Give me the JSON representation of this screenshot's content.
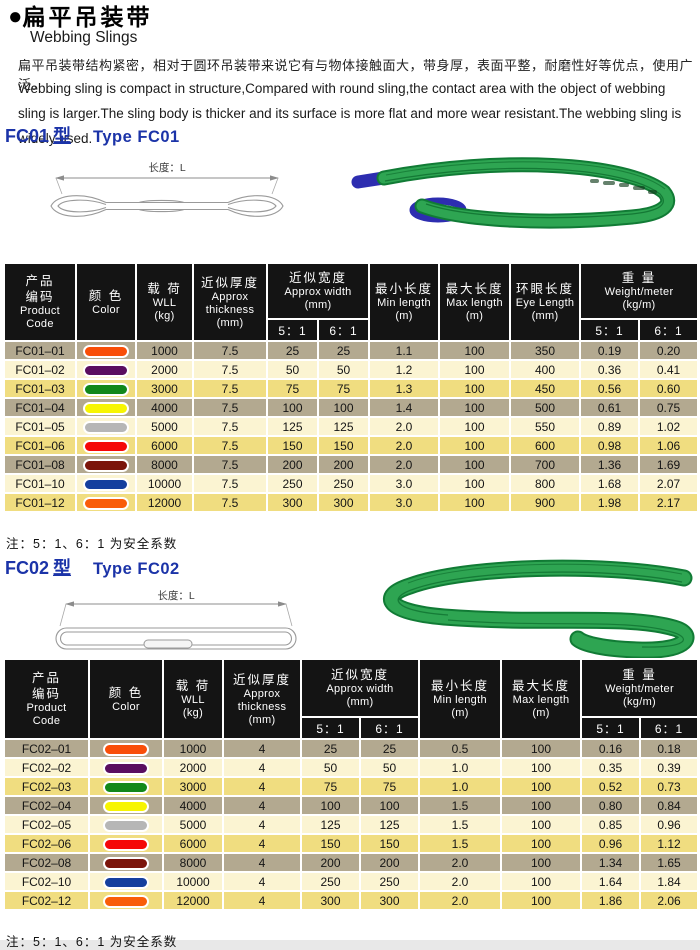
{
  "header": {
    "bullet": "●",
    "title_zh": "扁平吊装带",
    "title_en": "Webbing Slings",
    "desc_zh": "扁平吊装带结构紧密，相对于圆环吊装带来说它有与物体接触面大，带身厚，表面平整，耐磨性好等优点，使用广泛。",
    "desc_en": "Webbing sling is compact in structure,Compared with round sling,the contact area with the object of webbing sling is larger.The sling body is thicker and its surface is more flat and more wear resistant.The webbing sling is widely used."
  },
  "sections": [
    {
      "heading_code": "FC01",
      "heading_xing": "型",
      "heading_en": "Type FC01",
      "drawing_label": "长度：L",
      "note": "注：5：1、6：1 为安全系数",
      "table": {
        "columns": [
          {
            "lines": [
              "产品",
              "编码",
              "Product",
              "Code"
            ],
            "sub": null
          },
          {
            "lines": [
              "颜 色",
              "Color"
            ],
            "sub": null
          },
          {
            "lines": [
              "载 荷",
              "WLL",
              "(kg)"
            ],
            "sub": null
          },
          {
            "lines": [
              "近似厚度",
              "Approx",
              "thickness",
              "(mm)"
            ],
            "sub": null
          },
          {
            "lines": [
              "近似宽度",
              "Approx width",
              "(mm)"
            ],
            "sub": [
              "5：1",
              "6：1"
            ]
          },
          {
            "lines": [
              "最小长度",
              "Min length",
              "(m)"
            ],
            "sub": null
          },
          {
            "lines": [
              "最大长度",
              "Max length",
              "(m)"
            ],
            "sub": null
          },
          {
            "lines": [
              "环眼长度",
              "Eye Length",
              "(mm)"
            ],
            "sub": null
          },
          {
            "lines": [
              "重 量",
              "Weight/meter",
              "(kg/m)"
            ],
            "sub": [
              "5：1",
              "6：1"
            ]
          }
        ],
        "rows": [
          {
            "code": "FC01–01",
            "color_name": "orange",
            "color_hex": "#f94e08",
            "values": [
              "1000",
              "7.5",
              "25",
              "25",
              "1.1",
              "100",
              "350",
              "0.19",
              "0.20"
            ]
          },
          {
            "code": "FC01–02",
            "color_name": "purple",
            "color_hex": "#5a0e60",
            "values": [
              "2000",
              "7.5",
              "50",
              "50",
              "1.2",
              "100",
              "400",
              "0.36",
              "0.41"
            ]
          },
          {
            "code": "FC01–03",
            "color_name": "green",
            "color_hex": "#12881a",
            "values": [
              "3000",
              "7.5",
              "75",
              "75",
              "1.3",
              "100",
              "450",
              "0.56",
              "0.60"
            ]
          },
          {
            "code": "FC01–04",
            "color_name": "yellow",
            "color_hex": "#f7f501",
            "values": [
              "4000",
              "7.5",
              "100",
              "100",
              "1.4",
              "100",
              "500",
              "0.61",
              "0.75"
            ]
          },
          {
            "code": "FC01–05",
            "color_name": "gray",
            "color_hex": "#b6b6b6",
            "values": [
              "5000",
              "7.5",
              "125",
              "125",
              "2.0",
              "100",
              "550",
              "0.89",
              "1.02"
            ]
          },
          {
            "code": "FC01–06",
            "color_name": "red",
            "color_hex": "#f50808",
            "values": [
              "6000",
              "7.5",
              "150",
              "150",
              "2.0",
              "100",
              "600",
              "0.98",
              "1.06"
            ]
          },
          {
            "code": "FC01–08",
            "color_name": "dark-red",
            "color_hex": "#7b150b",
            "values": [
              "8000",
              "7.5",
              "200",
              "200",
              "2.0",
              "100",
              "700",
              "1.36",
              "1.69"
            ]
          },
          {
            "code": "FC01–10",
            "color_name": "blue",
            "color_hex": "#153f9e",
            "values": [
              "10000",
              "7.5",
              "250",
              "250",
              "3.0",
              "100",
              "800",
              "1.68",
              "2.07"
            ]
          },
          {
            "code": "FC01–12",
            "color_name": "orange",
            "color_hex": "#f95d0a",
            "values": [
              "12000",
              "7.5",
              "300",
              "300",
              "3.0",
              "100",
              "900",
              "1.98",
              "2.17"
            ]
          }
        ]
      }
    },
    {
      "heading_code": "FC02",
      "heading_xing": "型",
      "heading_en": "Type FC02",
      "drawing_label": "长度：L",
      "note": "注：5：1、6：1 为安全系数",
      "table": {
        "columns": [
          {
            "lines": [
              "产品",
              "编码",
              "Product",
              "Code"
            ],
            "sub": null
          },
          {
            "lines": [
              "颜 色",
              "Color"
            ],
            "sub": null
          },
          {
            "lines": [
              "载 荷",
              "WLL",
              "(kg)"
            ],
            "sub": null
          },
          {
            "lines": [
              "近似厚度",
              "Approx",
              "thickness",
              "(mm)"
            ],
            "sub": null
          },
          {
            "lines": [
              "近似宽度",
              "Approx width",
              "(mm)"
            ],
            "sub": [
              "5：1",
              "6：1"
            ]
          },
          {
            "lines": [
              "最小长度",
              "Min length",
              "(m)"
            ],
            "sub": null
          },
          {
            "lines": [
              "最大长度",
              "Max length",
              "(m)"
            ],
            "sub": null
          },
          {
            "lines": [
              "重 量",
              "Weight/meter",
              "(kg/m)"
            ],
            "sub": [
              "5：1",
              "6：1"
            ]
          }
        ],
        "rows": [
          {
            "code": "FC02–01",
            "color_name": "orange",
            "color_hex": "#f94e08",
            "values": [
              "1000",
              "4",
              "25",
              "25",
              "0.5",
              "100",
              "0.16",
              "0.18"
            ]
          },
          {
            "code": "FC02–02",
            "color_name": "purple",
            "color_hex": "#5a0e60",
            "values": [
              "2000",
              "4",
              "50",
              "50",
              "1.0",
              "100",
              "0.35",
              "0.39"
            ]
          },
          {
            "code": "FC02–03",
            "color_name": "green",
            "color_hex": "#12881a",
            "values": [
              "3000",
              "4",
              "75",
              "75",
              "1.0",
              "100",
              "0.52",
              "0.73"
            ]
          },
          {
            "code": "FC02–04",
            "color_name": "yellow",
            "color_hex": "#f7f501",
            "values": [
              "4000",
              "4",
              "100",
              "100",
              "1.5",
              "100",
              "0.80",
              "0.84"
            ]
          },
          {
            "code": "FC02–05",
            "color_name": "gray",
            "color_hex": "#b6b6b6",
            "values": [
              "5000",
              "4",
              "125",
              "125",
              "1.5",
              "100",
              "0.85",
              "0.96"
            ]
          },
          {
            "code": "FC02–06",
            "color_name": "red",
            "color_hex": "#f50808",
            "values": [
              "6000",
              "4",
              "150",
              "150",
              "1.5",
              "100",
              "0.96",
              "1.12"
            ]
          },
          {
            "code": "FC02–08",
            "color_name": "dark-red",
            "color_hex": "#7b150b",
            "values": [
              "8000",
              "4",
              "200",
              "200",
              "2.0",
              "100",
              "1.34",
              "1.65"
            ]
          },
          {
            "code": "FC02–10",
            "color_name": "blue",
            "color_hex": "#153f9e",
            "values": [
              "10000",
              "4",
              "250",
              "250",
              "2.0",
              "100",
              "1.64",
              "1.84"
            ]
          },
          {
            "code": "FC02–12",
            "color_name": "orange",
            "color_hex": "#f95d0a",
            "values": [
              "12000",
              "4",
              "300",
              "300",
              "2.0",
              "100",
              "1.86",
              "2.06"
            ]
          }
        ]
      }
    }
  ]
}
